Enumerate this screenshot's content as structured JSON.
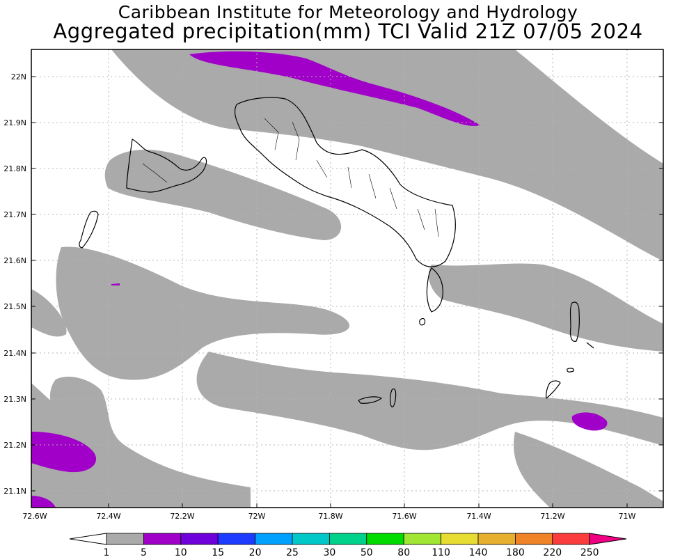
{
  "title_line1": "Caribbean Institute for Meteorology and Hydrology",
  "title_line2": "Aggregated precipitation(mm) TCI Valid 21Z 07/05 2024",
  "lat_labels": [
    "22N",
    "21.9N",
    "21.8N",
    "21.7N",
    "21.6N",
    "21.5N",
    "21.4N",
    "21.3N",
    "21.2N",
    "21.1N"
  ],
  "lon_labels": [
    "72.6W",
    "72.4W",
    "72.2W",
    "72W",
    "71.8W",
    "71.6W",
    "71.4W",
    "71.2W",
    "71W"
  ],
  "colorbar": {
    "labels": [
      "1",
      "5",
      "10",
      "15",
      "20",
      "25",
      "30",
      "50",
      "80",
      "110",
      "140",
      "180",
      "220",
      "250"
    ],
    "colors": [
      "#aaaaaa",
      "#a000c8",
      "#6e00dc",
      "#1e3cff",
      "#00a0ff",
      "#00c8c8",
      "#00d28c",
      "#00dc00",
      "#a0e632",
      "#e6dc32",
      "#e6af2d",
      "#f08228",
      "#fa3c3c",
      "#f00082"
    ]
  },
  "colors": {
    "precip_1_5": "#aaaaaa",
    "precip_5_10": "#a000c8",
    "land_outline": "#000000",
    "grid": "#b4b4b4"
  }
}
